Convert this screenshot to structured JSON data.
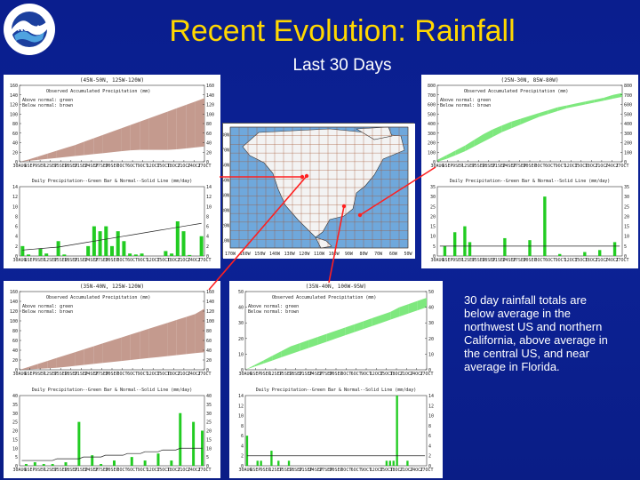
{
  "slide": {
    "title": "Recent Evolution: Rainfall",
    "subtitle": "Last 30 Days",
    "caption": "30 day rainfall totals are below average in the northwest US and northern California, above average in the central US, and near average in Florida.",
    "logo_text": "NOAA"
  },
  "panel_text": {
    "cum_title": "Observed Accumulated Precipitation  (mm)",
    "legend_above": "Above normal: green",
    "legend_below": "Below normal: brown",
    "daily_title": "Daily Precipitation--Green Bar & Normal--Solid Line (mm/day)",
    "x_ticks": [
      "30AUG 2010",
      "6SEP",
      "9SEP",
      "12SEP",
      "15SEP",
      "18SEP",
      "21SEP",
      "24SEP",
      "27SEP",
      "30SEP",
      "3OCT",
      "6OCT",
      "9OCT",
      "12OCT",
      "15OCT",
      "18OCT",
      "21OCT",
      "24OCT",
      "27OCT"
    ]
  },
  "map": {
    "lon_labels": [
      "170W",
      "160W",
      "150W",
      "140W",
      "130W",
      "120W",
      "110W",
      "100W",
      "90W",
      "80W",
      "70W",
      "60W",
      "50W"
    ],
    "lat_labels": [
      "10N",
      "20N",
      "30N",
      "40N",
      "50N",
      "60N",
      "70N",
      "80N"
    ]
  },
  "chart_data": [
    {
      "region": "(45N-50N, 125W-120W)",
      "type": "area",
      "panel": "cumulative",
      "ylim": [
        0,
        160
      ],
      "y_ticks": [
        0,
        20,
        40,
        60,
        80,
        100,
        120,
        140,
        160
      ],
      "observed": [
        0,
        2,
        4,
        6,
        8,
        10,
        12,
        14,
        16,
        18,
        20,
        22,
        24,
        25,
        25,
        25,
        25,
        26,
        28,
        30,
        32
      ],
      "normal": [
        0,
        5,
        11,
        17,
        23,
        29,
        35,
        42,
        49,
        56,
        63,
        70,
        77,
        84,
        91,
        98,
        105,
        112,
        119,
        126,
        133
      ],
      "daily": {
        "type": "bar",
        "ylim": [
          0,
          14
        ],
        "y_ticks": [
          0,
          2,
          4,
          6,
          8,
          10,
          12,
          14
        ],
        "values": [
          2,
          0.3,
          0,
          1.5,
          0.5,
          0,
          3,
          0.3,
          0,
          0,
          0,
          2,
          6,
          5,
          6,
          2,
          5,
          3,
          0.5,
          0.3,
          0.5,
          0,
          0,
          0,
          1,
          0.5,
          7,
          5,
          0.2,
          0,
          4
        ],
        "normal": [
          1.2,
          1.3,
          1.4,
          1.5,
          1.6,
          1.7,
          1.8,
          2,
          2.2,
          2.4,
          2.6,
          2.8,
          3,
          3.2,
          3.4,
          3.6,
          3.8,
          4,
          4.2,
          4.4,
          4.6,
          4.8,
          5,
          5.2,
          5.4,
          5.6,
          5.8,
          6,
          6.2,
          6.4,
          6.6
        ]
      }
    },
    {
      "region": "(25N-30N, 85W-80W)",
      "type": "area",
      "panel": "cumulative",
      "ylim": [
        0,
        800
      ],
      "y_ticks": [
        0,
        100,
        200,
        300,
        400,
        500,
        600,
        700,
        800
      ],
      "observed": [
        20,
        70,
        120,
        170,
        230,
        290,
        340,
        380,
        420,
        450,
        480,
        510,
        540,
        570,
        590,
        610,
        630,
        650,
        670,
        700,
        720
      ],
      "normal": [
        0,
        30,
        70,
        110,
        160,
        210,
        260,
        310,
        350,
        390,
        430,
        470,
        500,
        530,
        560,
        580,
        600,
        620,
        640,
        660,
        680
      ],
      "daily": {
        "type": "bar",
        "ylim": [
          0,
          35
        ],
        "y_ticks": [
          0,
          5,
          10,
          15,
          20,
          25,
          30,
          35
        ],
        "values": [
          0,
          5,
          0,
          12,
          0,
          15,
          7,
          0,
          0,
          0,
          0,
          0,
          0,
          9,
          0,
          0,
          0,
          0,
          8,
          0,
          0,
          30,
          0,
          0,
          1,
          0,
          0,
          0,
          0,
          2,
          0,
          0,
          3,
          0,
          0,
          7,
          0
        ],
        "normal": [
          5,
          5,
          5,
          5,
          5,
          5,
          5,
          5,
          5,
          5,
          5,
          5,
          5,
          5,
          5,
          5,
          5,
          5,
          5,
          5,
          5,
          5,
          5,
          5,
          5,
          5,
          5,
          5,
          5,
          5,
          5,
          5,
          5,
          5,
          5,
          5,
          5
        ]
      }
    },
    {
      "region": "(35N-40N, 125W-120W)",
      "type": "area",
      "panel": "cumulative",
      "ylim": [
        0,
        160
      ],
      "y_ticks": [
        0,
        20,
        40,
        60,
        80,
        100,
        120,
        140,
        160
      ],
      "observed": [
        0,
        1,
        2,
        3,
        4,
        6,
        8,
        10,
        12,
        14,
        16,
        18,
        20,
        22,
        24,
        26,
        28,
        30,
        32,
        34,
        36
      ],
      "normal": [
        0,
        6,
        12,
        18,
        24,
        30,
        36,
        42,
        48,
        54,
        60,
        66,
        72,
        78,
        84,
        90,
        96,
        102,
        108,
        114,
        125
      ],
      "daily": {
        "type": "bar",
        "ylim": [
          0,
          40
        ],
        "y_ticks": [
          0,
          5,
          10,
          15,
          20,
          25,
          30,
          35,
          40
        ],
        "values": [
          0,
          1,
          0,
          2,
          0,
          1,
          0,
          1,
          0,
          0,
          2,
          0,
          0,
          25,
          0,
          0,
          6,
          0,
          1,
          0,
          0,
          3,
          0,
          0,
          0,
          5,
          0,
          0,
          3,
          0,
          0,
          7,
          0,
          0,
          3,
          0,
          30,
          0,
          0,
          25,
          0,
          20
        ],
        "normal": [
          3,
          3,
          3,
          3,
          3,
          3,
          3,
          3,
          4,
          4,
          4,
          4,
          4,
          4,
          5,
          5,
          5,
          5,
          5,
          6,
          6,
          6,
          6,
          6,
          7,
          7,
          7,
          7,
          8,
          8,
          8,
          8,
          9,
          9,
          9,
          9,
          10,
          10,
          10,
          10,
          10,
          10
        ]
      }
    },
    {
      "region": "(35N-40N, 100W-95W)",
      "type": "area",
      "panel": "cumulative",
      "ylim": [
        0,
        50
      ],
      "y_ticks": [
        0,
        10,
        20,
        30,
        40,
        50
      ],
      "observed": [
        0,
        3,
        6,
        9,
        12,
        15,
        17,
        19,
        21,
        23,
        25,
        27,
        29,
        31,
        33,
        35,
        37,
        40,
        42,
        44,
        46
      ],
      "normal": [
        0,
        2,
        4,
        6,
        8,
        10,
        12,
        14,
        16,
        18,
        20,
        22,
        24,
        26,
        28,
        30,
        32,
        34,
        36,
        38,
        40
      ],
      "daily": {
        "type": "bar",
        "ylim": [
          0,
          14
        ],
        "y_ticks": [
          0,
          2,
          4,
          6,
          8,
          10,
          12,
          14
        ],
        "values": [
          6,
          0,
          0,
          1,
          1,
          0,
          0,
          3,
          0,
          1,
          0,
          0,
          1,
          0,
          0,
          0,
          0,
          0,
          0,
          0,
          0,
          0,
          0,
          0,
          0,
          0,
          0,
          0,
          0,
          0,
          0,
          0,
          0,
          0,
          0,
          0,
          0,
          0,
          0,
          0,
          1,
          1,
          1,
          14,
          0,
          0,
          1,
          0,
          0,
          0,
          0,
          0
        ],
        "normal": [
          2,
          2,
          2,
          2,
          2,
          2,
          2,
          2,
          2,
          2,
          2,
          2,
          2,
          2,
          2,
          2,
          2,
          2,
          2,
          2,
          2,
          2,
          2,
          2,
          2,
          2,
          2,
          2,
          2,
          2,
          2,
          2,
          2,
          2,
          2,
          2,
          2,
          2,
          2,
          2,
          2,
          2,
          2,
          2,
          2,
          2,
          2,
          2,
          2,
          2,
          2,
          2
        ]
      }
    }
  ],
  "colors": {
    "background": "#0b1f8c",
    "title": "#ffd700",
    "above_fill": "#7ee87e",
    "below_fill": "#c49a8e",
    "bar": "#22cc22",
    "arrow": "#ff2020"
  }
}
